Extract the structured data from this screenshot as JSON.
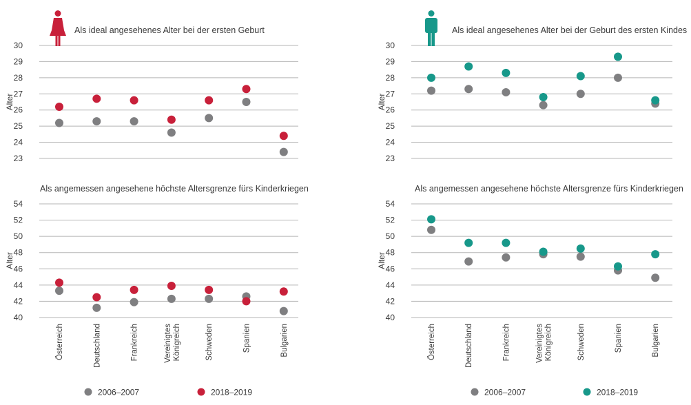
{
  "legend": {
    "left": [
      {
        "label": "2006–2007",
        "color": "#7f7f81"
      },
      {
        "label": "2018–2019",
        "color": "#c8203a"
      }
    ],
    "right": [
      {
        "label": "2006–2007",
        "color": "#7f7f81"
      },
      {
        "label": "2018–2019",
        "color": "#17988a"
      }
    ]
  },
  "icons": {
    "left": "woman-icon",
    "right": "man-icon"
  },
  "chart_data": [
    {
      "type": "scatter",
      "title": "Als ideal angesehenes Alter bei der ersten Geburt",
      "ylabel": "Alter",
      "ylim": [
        23,
        30
      ],
      "yticks": [
        23,
        24,
        25,
        26,
        27,
        28,
        29,
        30
      ],
      "grid": true,
      "categories": [
        "Österreich",
        "Deutschland",
        "Frankreich",
        [
          "Vereinigtes",
          "Königreich"
        ],
        "Schweden",
        "Spanien",
        "Bulgarien"
      ],
      "series": [
        {
          "name": "2006–2007",
          "color": "#7f7f81",
          "values": [
            25.2,
            25.3,
            25.3,
            24.6,
            25.5,
            26.5,
            23.4
          ]
        },
        {
          "name": "2018–2019",
          "color": "#c8203a",
          "values": [
            26.2,
            26.7,
            26.6,
            25.4,
            26.6,
            27.3,
            24.4
          ]
        }
      ]
    },
    {
      "type": "scatter",
      "title": "Als ideal angesehenes Alter bei der Geburt des ersten Kindes",
      "ylabel": "Alter",
      "ylim": [
        23,
        30
      ],
      "yticks": [
        23,
        24,
        25,
        26,
        27,
        28,
        29,
        30
      ],
      "grid": true,
      "categories": [
        "Österreich",
        "Deutschland",
        "Frankreich",
        [
          "Vereinigtes",
          "Königreich"
        ],
        "Schweden",
        "Spanien",
        "Bulgarien"
      ],
      "series": [
        {
          "name": "2006–2007",
          "color": "#7f7f81",
          "values": [
            27.2,
            27.3,
            27.1,
            26.3,
            27.0,
            28.0,
            26.4
          ]
        },
        {
          "name": "2018–2019",
          "color": "#17988a",
          "values": [
            28.0,
            28.7,
            28.3,
            26.8,
            28.1,
            29.3,
            26.6
          ]
        }
      ]
    },
    {
      "type": "scatter",
      "title": "Als angemessen angesehene höchste Altersgrenze fürs Kinderkriegen",
      "ylabel": "Alter",
      "ylim": [
        40,
        54
      ],
      "yticks": [
        40,
        42,
        44,
        46,
        48,
        50,
        52,
        54
      ],
      "grid": true,
      "categories": [
        "Österreich",
        "Deutschland",
        "Frankreich",
        [
          "Vereinigtes",
          "Königreich"
        ],
        "Schweden",
        "Spanien",
        "Bulgarien"
      ],
      "series": [
        {
          "name": "2006–2007",
          "color": "#7f7f81",
          "values": [
            43.3,
            41.2,
            41.9,
            42.3,
            42.3,
            42.6,
            40.8
          ]
        },
        {
          "name": "2018–2019",
          "color": "#c8203a",
          "values": [
            44.3,
            42.5,
            43.4,
            43.9,
            43.4,
            42.0,
            43.2
          ]
        }
      ]
    },
    {
      "type": "scatter",
      "title": "Als angemessen angesehene höchste Altersgrenze fürs Kinderkriegen",
      "ylabel": "Alter",
      "ylim": [
        40,
        54
      ],
      "yticks": [
        40,
        42,
        44,
        46,
        48,
        50,
        52,
        54
      ],
      "grid": true,
      "categories": [
        "Österreich",
        "Deutschland",
        "Frankreich",
        [
          "Vereinigtes",
          "Königreich"
        ],
        "Schweden",
        "Spanien",
        "Bulgarien"
      ],
      "series": [
        {
          "name": "2006–2007",
          "color": "#7f7f81",
          "values": [
            50.8,
            46.9,
            47.4,
            47.8,
            47.5,
            45.8,
            44.9
          ]
        },
        {
          "name": "2018–2019",
          "color": "#17988a",
          "values": [
            52.1,
            49.2,
            49.2,
            48.1,
            48.5,
            46.3,
            47.8
          ]
        }
      ]
    }
  ]
}
